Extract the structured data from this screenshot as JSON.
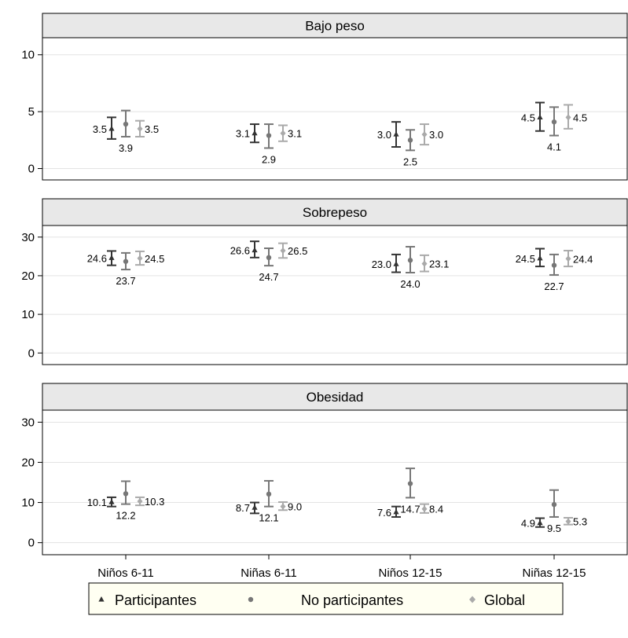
{
  "chart_data": {
    "type": "scatter",
    "categories": [
      "Niños 6-11",
      "Niñas 6-11",
      "Niños 12-15",
      "Niñas 12-15"
    ],
    "legend": {
      "placement": "bottom",
      "entries": [
        {
          "name": "Participantes",
          "marker": "triangle",
          "color": "#333333"
        },
        {
          "name": "No participantes",
          "marker": "circle",
          "color": "#777777"
        },
        {
          "name": "Global",
          "marker": "diamond",
          "color": "#aaaaaa"
        }
      ]
    },
    "grid": true,
    "panels": [
      {
        "title": "Bajo peso",
        "yticks": [
          0,
          5,
          10
        ],
        "ylim": [
          -1,
          11.5
        ],
        "series": [
          {
            "name": "Participantes",
            "color": "#333333",
            "values": [
              3.5,
              3.1,
              3.0,
              4.5
            ],
            "lower": [
              2.6,
              2.3,
              1.9,
              3.3
            ],
            "upper": [
              4.5,
              3.9,
              4.1,
              5.8
            ],
            "labels": [
              "3.5",
              "3.1",
              "3.0",
              "4.5"
            ]
          },
          {
            "name": "No participantes",
            "color": "#777777",
            "values": [
              3.9,
              2.9,
              2.5,
              4.1
            ],
            "lower": [
              2.8,
              1.8,
              1.6,
              2.9
            ],
            "upper": [
              5.1,
              3.9,
              3.4,
              5.4
            ],
            "labels": [
              "3.9",
              "2.9",
              "2.5",
              "4.1"
            ]
          },
          {
            "name": "Global",
            "color": "#aaaaaa",
            "values": [
              3.5,
              3.1,
              3.0,
              4.5
            ],
            "lower": [
              2.8,
              2.4,
              2.1,
              3.5
            ],
            "upper": [
              4.2,
              3.8,
              3.9,
              5.6
            ],
            "labels": [
              "3.5",
              "3.1",
              "3.0",
              "4.5"
            ]
          }
        ]
      },
      {
        "title": "Sobrepeso",
        "yticks": [
          0,
          10,
          20,
          30
        ],
        "ylim": [
          -3,
          33
        ],
        "series": [
          {
            "name": "Participantes",
            "color": "#333333",
            "values": [
              24.6,
              26.6,
              23.0,
              24.5
            ],
            "lower": [
              22.7,
              24.7,
              20.9,
              22.4
            ],
            "upper": [
              26.4,
              28.9,
              25.5,
              27.0
            ],
            "labels": [
              "24.6",
              "26.6",
              "23.0",
              "24.5"
            ]
          },
          {
            "name": "No participantes",
            "color": "#777777",
            "values": [
              23.7,
              24.7,
              24.0,
              22.7
            ],
            "lower": [
              21.6,
              22.6,
              20.8,
              20.2
            ],
            "upper": [
              25.9,
              27.1,
              27.5,
              25.5
            ],
            "labels": [
              "23.7",
              "24.7",
              "24.0",
              "22.7"
            ]
          },
          {
            "name": "Global",
            "color": "#aaaaaa",
            "values": [
              24.5,
              26.5,
              23.1,
              24.4
            ],
            "lower": [
              22.8,
              24.6,
              21.1,
              22.4
            ],
            "upper": [
              26.3,
              28.4,
              25.3,
              26.5
            ],
            "labels": [
              "24.5",
              "26.5",
              "23.1",
              "24.4"
            ]
          }
        ]
      },
      {
        "title": "Obesidad",
        "yticks": [
          0,
          10,
          20,
          30
        ],
        "ylim": [
          -3,
          33
        ],
        "series": [
          {
            "name": "Participantes",
            "color": "#333333",
            "values": [
              10.1,
              8.7,
              7.6,
              4.9
            ],
            "lower": [
              9.0,
              7.3,
              6.4,
              3.9
            ],
            "upper": [
              11.3,
              10.0,
              9.0,
              6.1
            ],
            "labels": [
              "10.1",
              "8.7",
              "7.6",
              "4.9"
            ]
          },
          {
            "name": "No participantes",
            "color": "#777777",
            "values": [
              12.2,
              12.1,
              14.7,
              9.5
            ],
            "lower": [
              9.6,
              9.0,
              11.2,
              6.4
            ],
            "upper": [
              15.3,
              15.4,
              18.5,
              13.1
            ],
            "labels": [
              "12.2",
              "12.1",
              "14.7",
              "9.5"
            ]
          },
          {
            "name": "Global",
            "color": "#aaaaaa",
            "values": [
              10.3,
              9.0,
              8.4,
              5.3
            ],
            "lower": [
              9.3,
              8.1,
              7.4,
              4.5
            ],
            "upper": [
              11.3,
              10.1,
              9.6,
              6.2
            ],
            "labels": [
              "10.3",
              "9.0",
              "8.4",
              "5.3"
            ]
          }
        ]
      }
    ]
  }
}
